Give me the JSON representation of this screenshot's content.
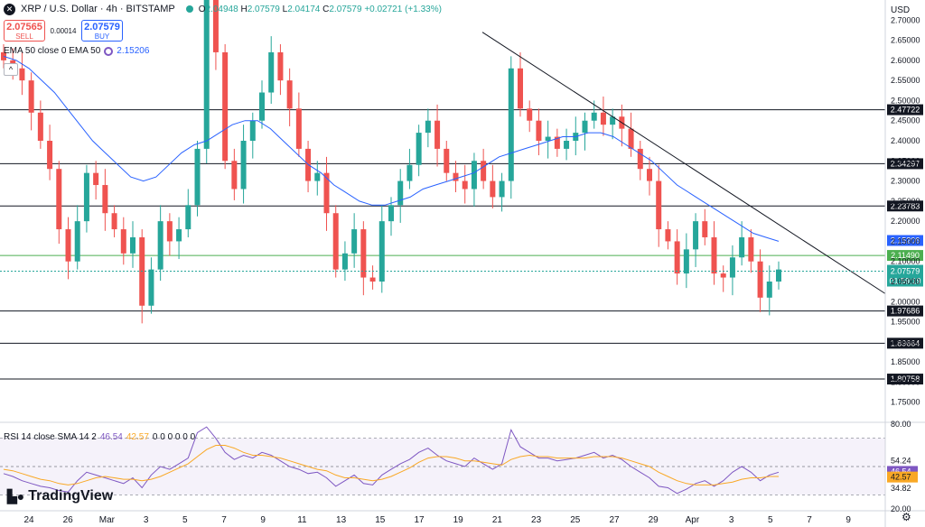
{
  "header": {
    "symbol": "XRP / U.S. Dollar · 4h · BITSTAMP",
    "icon": "xrp-logo-icon",
    "ohlc": [
      {
        "k": "O",
        "v": "2.04948"
      },
      {
        "k": "H",
        "v": "2.07579"
      },
      {
        "k": "L",
        "v": "2.04174"
      },
      {
        "k": "C",
        "v": "2.07579"
      },
      {
        "k": "",
        "v": "+0.02721 (+1.33%)"
      }
    ]
  },
  "trade": {
    "sell_price": "2.07565",
    "sell_label": "SELL",
    "spread": "0.00014",
    "buy_price": "2.07579",
    "buy_label": "BUY"
  },
  "ema_legend": {
    "label": "EMA 50 close 0 EMA 50",
    "value": "2.15206"
  },
  "collapse_label": "^",
  "rsi_legend": {
    "label": "RSI 14 close SMA 14 2",
    "rsi": "46.54",
    "sma": "42.57",
    "zeros": "0 0 0 0 0 0"
  },
  "currency": "USD",
  "brand": "TradingView",
  "colors": {
    "up": "#26a69a",
    "down": "#ef5350",
    "ema": "#2962ff",
    "rsi": "#7e57c2",
    "rsi_sma": "#f9a825",
    "support_line": "#000000",
    "green_line": "#4caf50"
  },
  "chart_data": {
    "type": "candlestick",
    "ylim": [
      1.7,
      2.75
    ],
    "y_ticks": [
      1.75,
      1.8,
      1.85,
      1.9,
      1.95,
      2.0,
      2.05,
      2.1,
      2.15,
      2.2,
      2.25,
      2.3,
      2.35,
      2.4,
      2.45,
      2.5,
      2.55,
      2.6,
      2.65,
      2.7
    ],
    "y_tick_labels": [
      "1.75000",
      "1.80000",
      "1.85000",
      "1.90000",
      "1.95000",
      "2.00000",
      "2.05000",
      "2.10000",
      "2.15000",
      "2.20000",
      "2.25000",
      "2.30000",
      "2.35000",
      "2.40000",
      "2.45000",
      "2.50000",
      "2.55000",
      "2.60000",
      "2.65000",
      "2.70000"
    ],
    "x_labels": [
      "24",
      "26",
      "Mar",
      "3",
      "5",
      "7",
      "9",
      "11",
      "13",
      "15",
      "17",
      "19",
      "21",
      "23",
      "25",
      "27",
      "29",
      "Apr",
      "3",
      "5",
      "7",
      "9"
    ],
    "horizontal_levels": [
      {
        "value": 2.47722,
        "label": "2.47722",
        "style": "black"
      },
      {
        "value": 2.34297,
        "label": "2.34297",
        "style": "black"
      },
      {
        "value": 2.23783,
        "label": "2.23783",
        "style": "black"
      },
      {
        "value": 2.1149,
        "label": "2.11490",
        "style": "green"
      },
      {
        "value": 1.97686,
        "label": "1.97686",
        "style": "black"
      },
      {
        "value": 1.89664,
        "label": "1.89664",
        "style": "black"
      },
      {
        "value": 1.80758,
        "label": "1.80758",
        "style": "black"
      }
    ],
    "ema_label": {
      "value": 2.15206,
      "label": "2.15206"
    },
    "price_label": {
      "value": 2.07579,
      "label": "2.07579",
      "countdown": "01:59:19"
    },
    "trendline": {
      "from": {
        "x": "Mar 19 12:00",
        "y": 2.67
      },
      "to": {
        "x": "Apr 9 12:00",
        "y": 2.02
      }
    },
    "closes": [
      2.6,
      2.58,
      2.55,
      2.47,
      2.4,
      2.33,
      2.18,
      2.1,
      2.2,
      2.32,
      2.29,
      2.22,
      2.18,
      2.12,
      2.16,
      1.99,
      2.08,
      2.2,
      2.15,
      2.18,
      2.24,
      2.38,
      2.75,
      2.62,
      2.35,
      2.28,
      2.4,
      2.45,
      2.52,
      2.62,
      2.55,
      2.48,
      2.38,
      2.3,
      2.32,
      2.22,
      2.08,
      2.12,
      2.18,
      2.06,
      2.05,
      2.2,
      2.24,
      2.3,
      2.34,
      2.42,
      2.45,
      2.38,
      2.32,
      2.3,
      2.28,
      2.35,
      2.3,
      2.26,
      2.3,
      2.58,
      2.48,
      2.45,
      2.4,
      2.41,
      2.38,
      2.4,
      2.42,
      2.45,
      2.47,
      2.44,
      2.46,
      2.43,
      2.38,
      2.33,
      2.3,
      2.18,
      2.15,
      2.07,
      2.13,
      2.2,
      2.16,
      2.07,
      2.06,
      2.11,
      2.16,
      2.1,
      2.01,
      2.05,
      2.08
    ],
    "ema50": [
      2.61,
      2.6,
      2.58,
      2.55,
      2.52,
      2.48,
      2.44,
      2.4,
      2.37,
      2.34,
      2.31,
      2.3,
      2.31,
      2.34,
      2.37,
      2.39,
      2.4,
      2.42,
      2.44,
      2.45,
      2.45,
      2.43,
      2.4,
      2.37,
      2.34,
      2.32,
      2.29,
      2.27,
      2.25,
      2.24,
      2.24,
      2.25,
      2.26,
      2.28,
      2.29,
      2.3,
      2.31,
      2.32,
      2.34,
      2.36,
      2.37,
      2.38,
      2.39,
      2.4,
      2.41,
      2.41,
      2.42,
      2.42,
      2.41,
      2.39,
      2.37,
      2.35,
      2.32,
      2.29,
      2.27,
      2.25,
      2.23,
      2.21,
      2.19,
      2.17,
      2.16,
      2.15
    ],
    "rsi": {
      "ylim": [
        20,
        80
      ],
      "ticks": [
        {
          "value": 80,
          "label": "80.00"
        },
        {
          "value": 20,
          "label": "20.00"
        }
      ],
      "labels": [
        {
          "value": 54.24,
          "label": "54.24"
        },
        {
          "value": 46.54,
          "label": "46.54",
          "style": "rsi"
        },
        {
          "value": 42.57,
          "label": "42.57",
          "style": "sma"
        },
        {
          "value": 34.82,
          "label": "34.82"
        }
      ],
      "band": [
        30,
        70
      ],
      "values": [
        45,
        43,
        40,
        38,
        36,
        35,
        33,
        32,
        40,
        46,
        44,
        42,
        40,
        38,
        42,
        35,
        44,
        50,
        48,
        52,
        56,
        74,
        78,
        70,
        60,
        55,
        58,
        56,
        60,
        58,
        54,
        50,
        48,
        45,
        46,
        42,
        36,
        40,
        44,
        38,
        37,
        44,
        48,
        52,
        55,
        60,
        63,
        58,
        54,
        52,
        50,
        56,
        52,
        48,
        52,
        76,
        64,
        60,
        56,
        56,
        54,
        55,
        56,
        58,
        60,
        56,
        58,
        55,
        50,
        46,
        42,
        36,
        35,
        31,
        34,
        38,
        40,
        36,
        40,
        46,
        50,
        46,
        40,
        44,
        46
      ],
      "sma": [
        48,
        47,
        45,
        43,
        41,
        40,
        38,
        37,
        38,
        40,
        42,
        43,
        42,
        41,
        41,
        40,
        41,
        43,
        46,
        49,
        52,
        57,
        62,
        65,
        65,
        63,
        60,
        58,
        58,
        57,
        56,
        54,
        52,
        50,
        48,
        47,
        44,
        42,
        42,
        41,
        40,
        41,
        43,
        46,
        49,
        53,
        56,
        57,
        57,
        56,
        54,
        54,
        53,
        52,
        51,
        55,
        57,
        58,
        57,
        57,
        56,
        56,
        56,
        56,
        57,
        57,
        57,
        56,
        54,
        52,
        50,
        46,
        43,
        40,
        38,
        37,
        37,
        37,
        38,
        39,
        41,
        42,
        42,
        43,
        43
      ]
    }
  }
}
